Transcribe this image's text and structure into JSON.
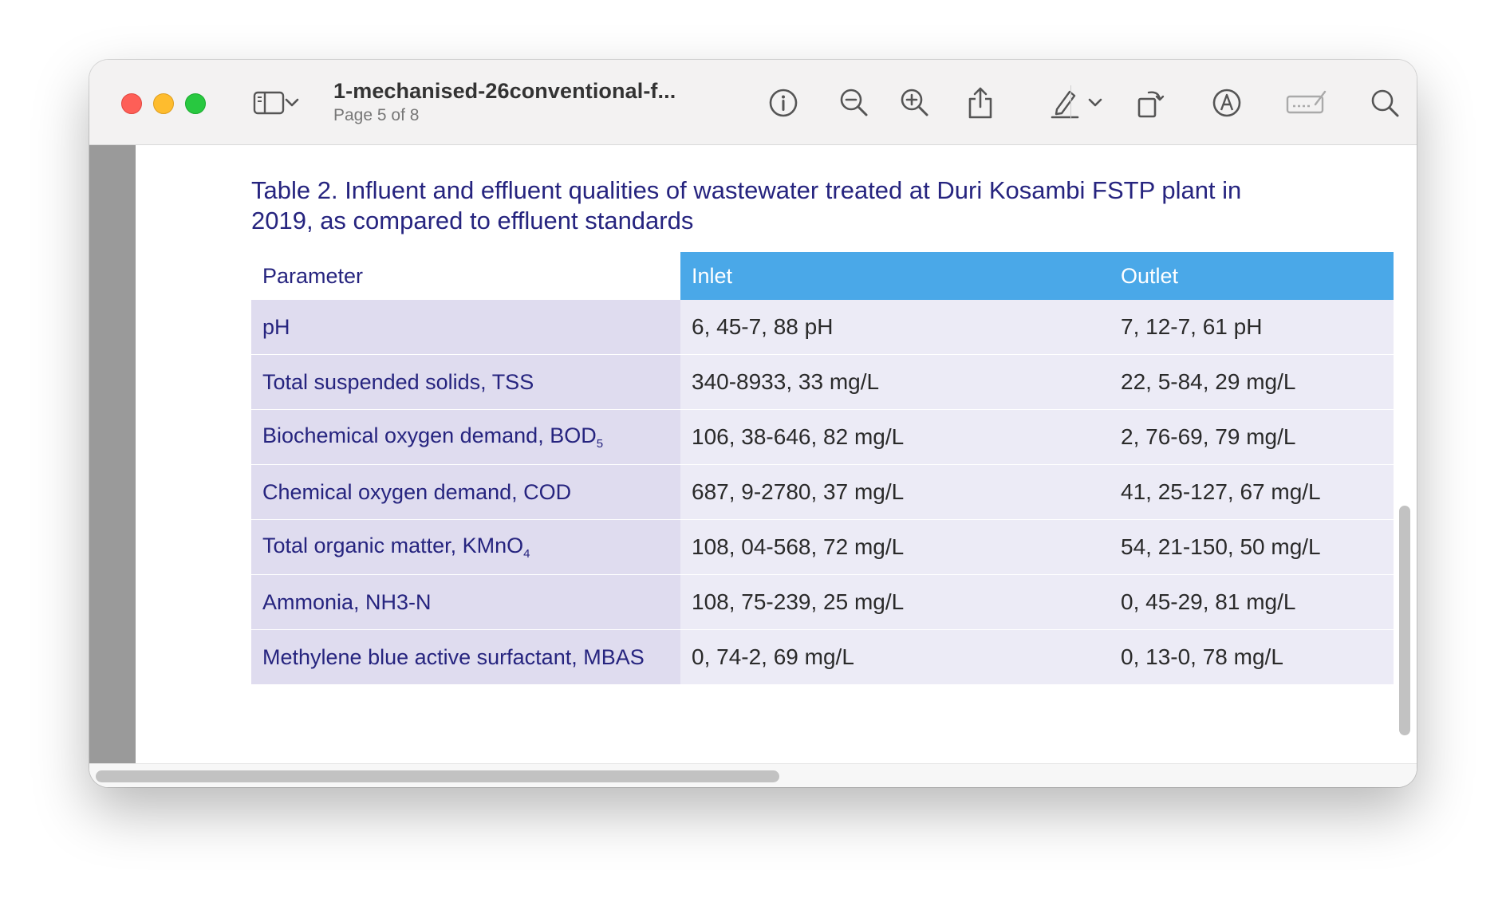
{
  "window": {
    "title": "1-mechanised-26conventional-f...",
    "subtitle": "Page 5 of 8"
  },
  "toolbar": {
    "icons": [
      "sidebar-icon",
      "chevron-down-icon",
      "info-icon",
      "zoom-out-icon",
      "zoom-in-icon",
      "share-icon",
      "highlight-pen-icon",
      "chevron-down-icon",
      "rotate-icon",
      "markup-icon",
      "signature-icon",
      "search-icon"
    ]
  },
  "document": {
    "table_title": "Table 2. Influent and effluent qualities of wastewater treated at Duri Kosambi FSTP plant in 2019, as compared to effluent standards",
    "headers": {
      "parameter": "Parameter",
      "inlet": "Inlet",
      "outlet": "Outlet"
    },
    "rows": [
      {
        "parameter": "pH",
        "sub": "",
        "inlet": "6, 45-7, 88 pH",
        "outlet": "7, 12-7, 61 pH"
      },
      {
        "parameter": "Total suspended solids, TSS",
        "sub": "",
        "inlet": "340-8933, 33 mg/L",
        "outlet": "22, 5-84, 29 mg/L"
      },
      {
        "parameter": "Biochemical oxygen demand, BOD",
        "sub": "5",
        "inlet": "106, 38-646, 82 mg/L",
        "outlet": "2, 76-69, 79 mg/L"
      },
      {
        "parameter": "Chemical oxygen demand, COD",
        "sub": "",
        "inlet": "687, 9-2780, 37 mg/L",
        "outlet": "41, 25-127, 67 mg/L"
      },
      {
        "parameter": "Total organic matter, KMnO",
        "sub": "4",
        "inlet": "108, 04-568, 72 mg/L",
        "outlet": "54, 21-150, 50 mg/L"
      },
      {
        "parameter": "Ammonia, NH3-N",
        "sub": "",
        "inlet": "108, 75-239, 25 mg/L",
        "outlet": "0, 45-29, 81 mg/L"
      },
      {
        "parameter": "Methylene blue active surfactant, MBAS",
        "sub": "",
        "inlet": "0, 74-2, 69 mg/L",
        "outlet": "0, 13-0, 78 mg/L"
      }
    ]
  },
  "colors": {
    "accent_header": "#4aa8e8",
    "title_text": "#26247f",
    "param_cell": "#dfdcef",
    "value_cell": "#ecebf6"
  }
}
